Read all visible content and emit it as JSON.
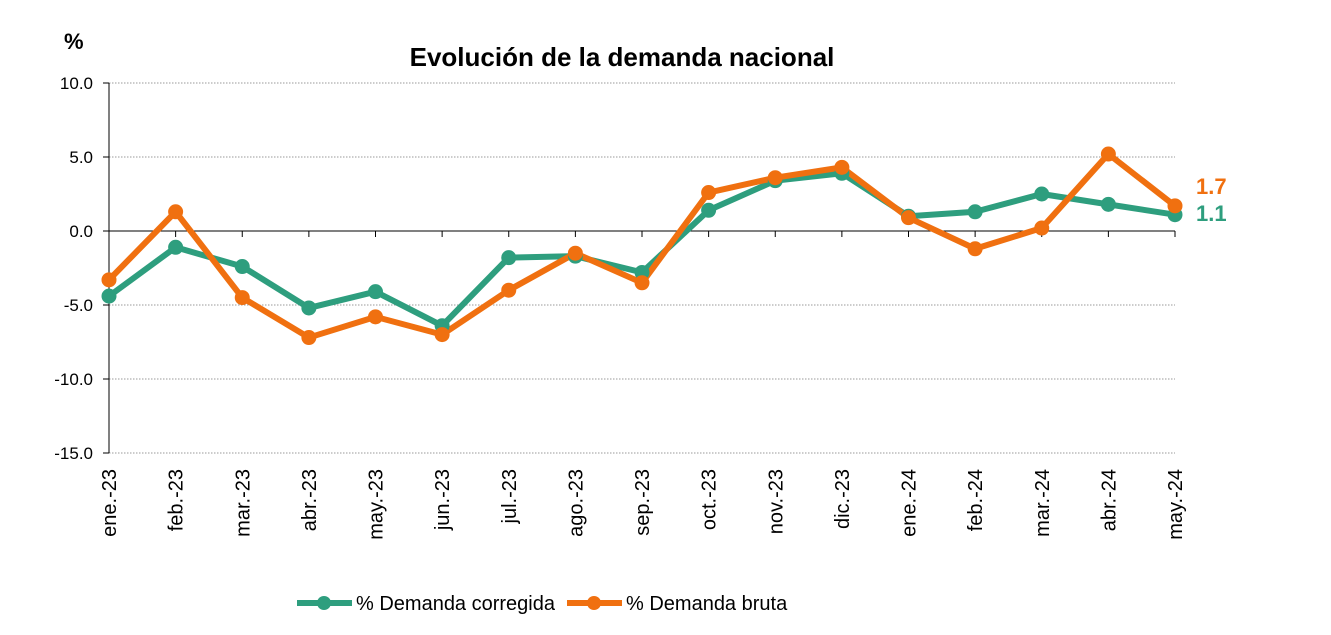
{
  "chart_data": {
    "type": "line",
    "title": "Evolución de la demanda nacional",
    "ylabel": "%",
    "xlabel": "",
    "ylim": [
      -15,
      10
    ],
    "yticks": [
      10,
      5,
      0,
      -5,
      -10,
      -15
    ],
    "ytick_labels": [
      "10.0",
      "5.0",
      "0.0",
      "-5.0",
      "-10.0",
      "-15.0"
    ],
    "grid": "horizontal dotted",
    "legend": "bottom",
    "categories": [
      "ene.-23",
      "feb.-23",
      "mar.-23",
      "abr.-23",
      "may.-23",
      "jun.-23",
      "jul.-23",
      "ago.-23",
      "sep.-23",
      "oct.-23",
      "nov.-23",
      "dic.-23",
      "ene.-24",
      "feb.-24",
      "mar.-24",
      "abr.-24",
      "may.-24"
    ],
    "series": [
      {
        "name": "% Demanda corregida",
        "color": "#2e9e7e",
        "values": [
          -4.4,
          -1.1,
          -2.4,
          -5.2,
          -4.1,
          -6.4,
          -1.8,
          -1.7,
          -2.8,
          1.4,
          3.4,
          3.9,
          1.0,
          1.3,
          2.5,
          1.8,
          1.1
        ],
        "end_label": "1.1"
      },
      {
        "name": "% Demanda bruta",
        "color": "#f07010",
        "values": [
          -3.3,
          1.3,
          -4.5,
          -7.2,
          -5.8,
          -7.0,
          -4.0,
          -1.5,
          -3.5,
          2.6,
          3.6,
          4.3,
          0.9,
          -1.2,
          0.2,
          5.2,
          1.7
        ],
        "end_label": "1.7"
      }
    ]
  }
}
